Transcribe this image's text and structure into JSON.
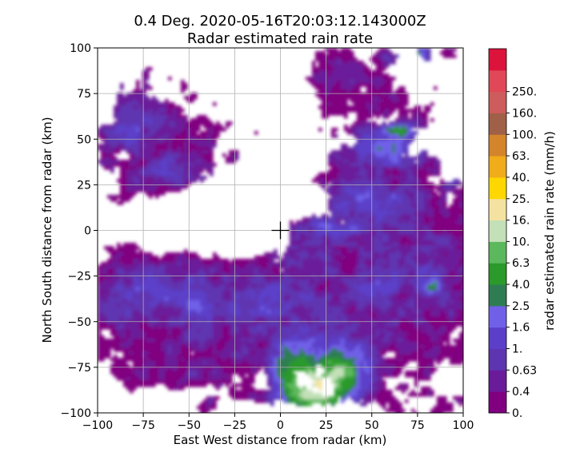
{
  "chart_data": {
    "type": "heatmap",
    "title_line1": "0.4 Deg. 2020-05-16T20:03:12.143000Z",
    "title_line2": "Radar estimated rain rate",
    "xlabel": "East West distance from radar (km)",
    "ylabel": "North South distance from radar (km)",
    "xlim": [
      -100,
      100
    ],
    "ylim": [
      -100,
      100
    ],
    "x_ticks": [
      -100,
      -75,
      -50,
      -25,
      0,
      25,
      50,
      75,
      100
    ],
    "y_ticks": [
      -100,
      -75,
      -50,
      -25,
      0,
      25,
      50,
      75,
      100
    ],
    "grid": true,
    "radar_marker": {
      "x": 0,
      "y": 0,
      "symbol": "+"
    },
    "colorbar": {
      "label": "radar estimated rain rate (mm/h)",
      "levels": [
        "0.",
        "0.4",
        "0.63",
        "1.",
        "1.6",
        "2.5",
        "4.0",
        "6.3",
        "10.",
        "16.",
        "25.",
        "40.",
        "63.",
        "100.",
        "160.",
        "250."
      ],
      "colors": [
        "#800080",
        "#6a1b9a",
        "#5e35b1",
        "#5c3fc9",
        "#7060e8",
        "#2e7d52",
        "#2a9a2a",
        "#5cb85c",
        "#c3e0b8",
        "#f4e3a0",
        "#ffd700",
        "#f0ac1a",
        "#d4852b",
        "#a06048",
        "#cd5c5c",
        "#e04858",
        "#dc143c"
      ]
    }
  }
}
